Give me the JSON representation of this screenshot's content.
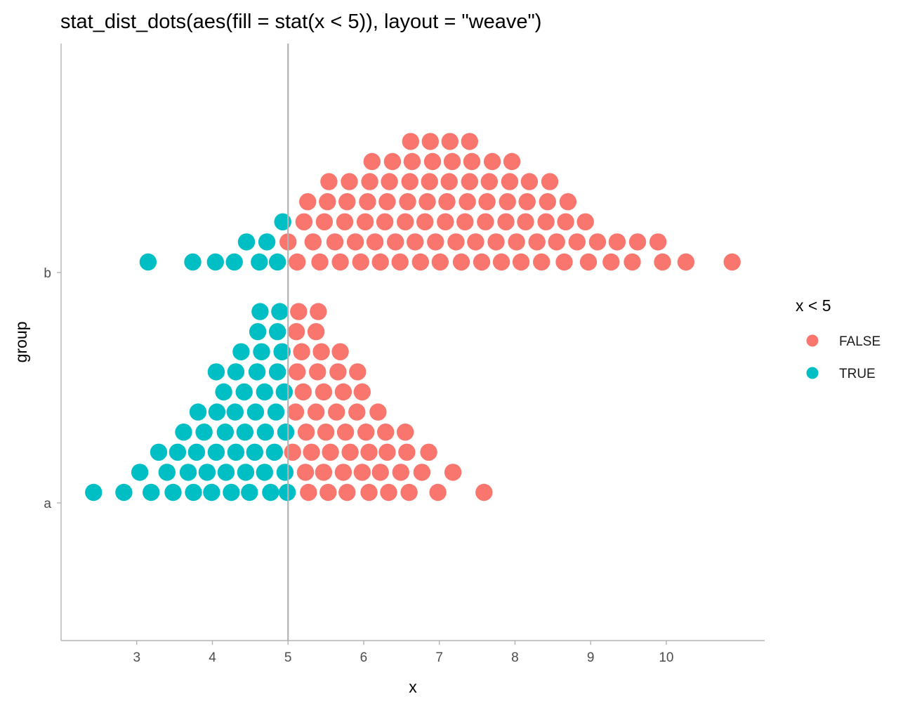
{
  "chart_data": {
    "type": "scatter",
    "title": "stat_dist_dots(aes(fill = stat(x < 5)), layout = \"weave\")",
    "xlabel": "x",
    "ylabel": "group",
    "xlim": [
      2.0,
      11.3
    ],
    "x_ticks": [
      3,
      4,
      5,
      6,
      7,
      8,
      9,
      10
    ],
    "categories": [
      "a",
      "b"
    ],
    "reference_line_x": 5,
    "grid": false,
    "legend": {
      "title": "x < 5",
      "position": "right",
      "entries": [
        {
          "label": "FALSE",
          "color": "#F8766D"
        },
        {
          "label": "TRUE",
          "color": "#00BFC4"
        }
      ]
    },
    "colors": {
      "FALSE": "#F8766D",
      "TRUE": "#00BFC4"
    },
    "groups": [
      {
        "name": "a",
        "rows": [
          [
            2.43,
            2.83,
            3.19,
            3.48,
            3.75,
            3.99,
            4.25,
            4.49,
            4.77,
            4.99,
            5.27,
            5.53,
            5.78,
            6.07,
            6.33,
            6.6,
            6.98,
            7.59
          ],
          [
            3.04,
            3.4,
            3.68,
            3.93,
            4.18,
            4.44,
            4.69,
            4.96,
            5.23,
            5.47,
            5.73,
            5.98,
            6.22,
            6.49,
            6.77,
            7.18
          ],
          [
            3.29,
            3.54,
            3.79,
            4.05,
            4.31,
            4.56,
            4.82,
            5.06,
            5.31,
            5.56,
            5.82,
            6.07,
            6.31,
            6.57,
            6.86
          ],
          [
            3.62,
            3.89,
            4.17,
            4.43,
            4.7,
            4.97,
            5.24,
            5.5,
            5.76,
            6.03,
            6.29,
            6.55
          ],
          [
            3.81,
            4.06,
            4.3,
            4.57,
            4.84,
            5.1,
            5.37,
            5.64,
            5.91,
            6.19
          ],
          [
            4.15,
            4.42,
            4.69,
            4.95,
            5.2,
            5.47,
            5.73,
            5.98
          ],
          [
            4.05,
            4.31,
            4.59,
            4.86,
            5.12,
            5.39,
            5.66,
            5.92
          ],
          [
            4.38,
            4.65,
            4.92,
            5.18,
            5.44,
            5.69
          ],
          [
            4.6,
            4.86,
            5.11,
            5.37
          ],
          [
            4.63,
            4.89,
            5.14,
            5.4
          ]
        ]
      },
      {
        "name": "b",
        "rows": [
          [
            3.15,
            3.74,
            4.04,
            4.29,
            4.62,
            4.86,
            5.12,
            5.42,
            5.69,
            5.96,
            6.22,
            6.48,
            6.75,
            7.01,
            7.29,
            7.56,
            7.82,
            8.08,
            8.35,
            8.65,
            8.97,
            9.27,
            9.55,
            9.95,
            10.26,
            10.87
          ],
          [
            4.45,
            4.72,
            5.0,
            5.33,
            5.62,
            5.89,
            6.15,
            6.42,
            6.68,
            6.95,
            7.22,
            7.48,
            7.75,
            8.02,
            8.29,
            8.55,
            8.82,
            9.09,
            9.35,
            9.62,
            9.89
          ],
          [
            4.93,
            5.21,
            5.48,
            5.75,
            6.02,
            6.28,
            6.55,
            6.81,
            7.08,
            7.34,
            7.61,
            7.88,
            8.14,
            8.41,
            8.67,
            8.93
          ],
          [
            5.26,
            5.52,
            5.78,
            6.05,
            6.31,
            6.58,
            6.84,
            7.1,
            7.37,
            7.63,
            7.9,
            8.16,
            8.43,
            8.7
          ],
          [
            5.54,
            5.81,
            6.08,
            6.34,
            6.61,
            6.87,
            7.13,
            7.4,
            7.66,
            7.93,
            8.19,
            8.46
          ],
          [
            6.11,
            6.38,
            6.64,
            6.91,
            7.17,
            7.43,
            7.7,
            7.96
          ],
          [
            6.62,
            6.88,
            7.14,
            7.4
          ]
        ]
      }
    ]
  }
}
